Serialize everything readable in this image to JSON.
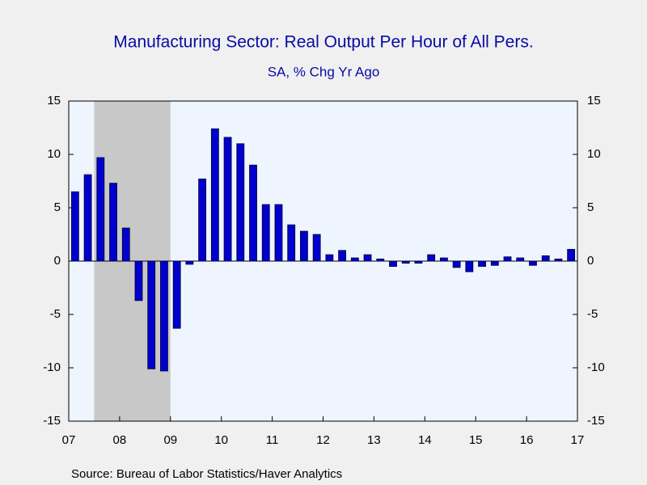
{
  "chart_data": {
    "type": "bar",
    "title": "Manufacturing Sector: Real Output Per Hour of All Pers.",
    "subtitle": "SA, % Chg Yr Ago",
    "source": "Source:  Bureau of Labor Statistics/Haver Analytics",
    "x": [
      2007.125,
      2007.375,
      2007.625,
      2007.875,
      2008.125,
      2008.375,
      2008.625,
      2008.875,
      2009.125,
      2009.375,
      2009.625,
      2009.875,
      2010.125,
      2010.375,
      2010.625,
      2010.875,
      2011.125,
      2011.375,
      2011.625,
      2011.875,
      2012.125,
      2012.375,
      2012.625,
      2012.875,
      2013.125,
      2013.375,
      2013.625,
      2013.875,
      2014.125,
      2014.375,
      2014.625,
      2014.875,
      2015.125,
      2015.375,
      2015.625,
      2015.875,
      2016.125,
      2016.375,
      2016.625,
      2016.875
    ],
    "values": [
      6.5,
      8.1,
      9.7,
      7.3,
      3.1,
      -3.7,
      -10.1,
      -10.3,
      -6.3,
      -0.3,
      7.7,
      12.4,
      11.6,
      11.0,
      9.0,
      5.3,
      5.3,
      3.4,
      2.8,
      2.5,
      0.6,
      1.0,
      0.3,
      0.6,
      0.2,
      -0.5,
      -0.2,
      -0.2,
      0.6,
      0.3,
      -0.6,
      -1.0,
      -0.5,
      -0.4,
      0.4,
      0.3,
      -0.4,
      0.5,
      0.2,
      1.1
    ],
    "color": "#0000cc",
    "shading": [
      [
        2007.5,
        2009.0
      ]
    ],
    "xlim": [
      2007,
      2017
    ],
    "xticks": [
      {
        "value": 2007,
        "label": "07"
      },
      {
        "value": 2008,
        "label": "08"
      },
      {
        "value": 2009,
        "label": "09"
      },
      {
        "value": 2010,
        "label": "10"
      },
      {
        "value": 2011,
        "label": "11"
      },
      {
        "value": 2012,
        "label": "12"
      },
      {
        "value": 2013,
        "label": "13"
      },
      {
        "value": 2014,
        "label": "14"
      },
      {
        "value": 2015,
        "label": "15"
      },
      {
        "value": 2016,
        "label": "16"
      },
      {
        "value": 2017,
        "label": "17"
      }
    ],
    "ylim": [
      -15,
      15
    ],
    "yticks": [
      -15,
      -10,
      -5,
      0,
      5,
      10,
      15
    ]
  }
}
